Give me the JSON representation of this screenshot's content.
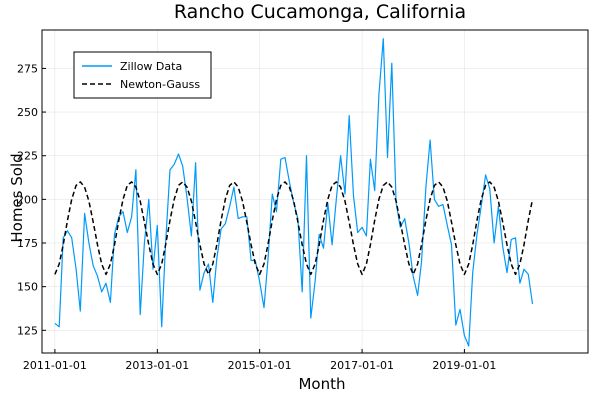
{
  "chart_data": {
    "type": "line",
    "title": "Rancho Cucamonga, California",
    "xlabel": "Month",
    "ylabel": "Homes Sold",
    "x_range": [
      "2010-10-01",
      "2021-06-01"
    ],
    "ylim": [
      112,
      297
    ],
    "x_ticks": [
      "2011-01-01",
      "2013-01-01",
      "2015-01-01",
      "2017-01-01",
      "2019-01-01"
    ],
    "y_ticks": [
      125,
      150,
      175,
      200,
      225,
      250,
      275
    ],
    "grid": true,
    "legend_position": "top-left",
    "colors": {
      "zillow": "#009AFA",
      "newton": "#000000"
    },
    "series": [
      {
        "name": "Zillow Data",
        "style": "solid",
        "x": [
          "2011-01-01",
          "2011-02-01",
          "2011-03-01",
          "2011-04-01",
          "2011-05-01",
          "2011-06-01",
          "2011-07-01",
          "2011-08-01",
          "2011-09-01",
          "2011-10-01",
          "2011-11-01",
          "2011-12-01",
          "2012-01-01",
          "2012-02-01",
          "2012-03-01",
          "2012-04-01",
          "2012-05-01",
          "2012-06-01",
          "2012-07-01",
          "2012-08-01",
          "2012-09-01",
          "2012-10-01",
          "2012-11-01",
          "2012-12-01",
          "2013-01-01",
          "2013-02-01",
          "2013-03-01",
          "2013-04-01",
          "2013-05-01",
          "2013-06-01",
          "2013-07-01",
          "2013-08-01",
          "2013-09-01",
          "2013-10-01",
          "2013-11-01",
          "2013-12-01",
          "2014-01-01",
          "2014-02-01",
          "2014-03-01",
          "2014-04-01",
          "2014-05-01",
          "2014-06-01",
          "2014-07-01",
          "2014-08-01",
          "2014-09-01",
          "2014-10-01",
          "2014-11-01",
          "2014-12-01",
          "2015-01-01",
          "2015-02-01",
          "2015-03-01",
          "2015-04-01",
          "2015-05-01",
          "2015-06-01",
          "2015-07-01",
          "2015-08-01",
          "2015-09-01",
          "2015-10-01",
          "2015-11-01",
          "2015-12-01",
          "2016-01-01",
          "2016-02-01",
          "2016-03-01",
          "2016-04-01",
          "2016-05-01",
          "2016-06-01",
          "2016-07-01",
          "2016-08-01",
          "2016-09-01",
          "2016-10-01",
          "2016-11-01",
          "2016-12-01",
          "2017-01-01",
          "2017-02-01",
          "2017-03-01",
          "2017-04-01",
          "2017-05-01",
          "2017-06-01",
          "2017-07-01",
          "2017-08-01",
          "2017-09-01",
          "2017-10-01",
          "2017-11-01",
          "2017-12-01",
          "2018-01-01",
          "2018-02-01",
          "2018-03-01",
          "2018-04-01",
          "2018-05-01",
          "2018-06-01",
          "2018-07-01",
          "2018-08-01",
          "2018-09-01",
          "2018-10-01",
          "2018-11-01",
          "2018-12-01",
          "2019-01-01",
          "2019-02-01",
          "2019-03-01",
          "2019-04-01",
          "2019-05-01",
          "2019-06-01",
          "2019-07-01",
          "2019-08-01",
          "2019-09-01",
          "2019-10-01",
          "2019-11-01",
          "2019-12-01",
          "2020-01-01",
          "2020-02-01",
          "2020-03-01",
          "2020-04-01",
          "2020-05-01"
        ],
        "y": [
          129,
          127,
          178,
          182,
          178,
          160,
          136,
          192,
          175,
          162,
          156,
          147,
          152,
          141,
          180,
          190,
          193,
          181,
          190,
          217,
          134,
          175,
          200,
          160,
          185,
          127,
          175,
          217,
          220,
          226,
          219,
          201,
          179,
          221,
          148,
          158,
          163,
          141,
          166,
          183,
          186,
          196,
          207,
          189,
          190,
          190,
          165,
          165,
          153,
          138,
          165,
          203,
          193,
          223,
          224,
          210,
          198,
          189,
          147,
          225,
          132,
          153,
          180,
          172,
          198,
          174,
          200,
          225,
          203,
          248,
          202,
          181,
          184,
          179,
          223,
          205,
          260,
          292,
          224,
          278,
          198,
          184,
          189,
          175,
          156,
          145,
          164,
          207,
          234,
          200,
          196,
          197,
          185,
          174,
          128,
          137,
          122,
          116,
          158,
          180,
          196,
          214,
          206,
          175,
          196,
          173,
          158,
          177,
          178,
          152,
          160,
          157,
          140
        ],
        "stroke_width": 1.2
      },
      {
        "name": "Newton-Gauss",
        "style": "dashed",
        "x": [
          "2011-01-01",
          "2011-02-01",
          "2011-03-01",
          "2011-04-01",
          "2011-05-01",
          "2011-06-01",
          "2011-07-01",
          "2011-08-01",
          "2011-09-01",
          "2011-10-01",
          "2011-11-01",
          "2011-12-01",
          "2012-01-01",
          "2012-02-01",
          "2012-03-01",
          "2012-04-01",
          "2012-05-01",
          "2012-06-01",
          "2012-07-01",
          "2012-08-01",
          "2012-09-01",
          "2012-10-01",
          "2012-11-01",
          "2012-12-01",
          "2013-01-01",
          "2013-02-01",
          "2013-03-01",
          "2013-04-01",
          "2013-05-01",
          "2013-06-01",
          "2013-07-01",
          "2013-08-01",
          "2013-09-01",
          "2013-10-01",
          "2013-11-01",
          "2013-12-01",
          "2014-01-01",
          "2014-02-01",
          "2014-03-01",
          "2014-04-01",
          "2014-05-01",
          "2014-06-01",
          "2014-07-01",
          "2014-08-01",
          "2014-09-01",
          "2014-10-01",
          "2014-11-01",
          "2014-12-01",
          "2015-01-01",
          "2015-02-01",
          "2015-03-01",
          "2015-04-01",
          "2015-05-01",
          "2015-06-01",
          "2015-07-01",
          "2015-08-01",
          "2015-09-01",
          "2015-10-01",
          "2015-11-01",
          "2015-12-01",
          "2016-01-01",
          "2016-02-01",
          "2016-03-01",
          "2016-04-01",
          "2016-05-01",
          "2016-06-01",
          "2016-07-01",
          "2016-08-01",
          "2016-09-01",
          "2016-10-01",
          "2016-11-01",
          "2016-12-01",
          "2017-01-01",
          "2017-02-01",
          "2017-03-01",
          "2017-04-01",
          "2017-05-01",
          "2017-06-01",
          "2017-07-01",
          "2017-08-01",
          "2017-09-01",
          "2017-10-01",
          "2017-11-01",
          "2017-12-01",
          "2018-01-01",
          "2018-02-01",
          "2018-03-01",
          "2018-04-01",
          "2018-05-01",
          "2018-06-01",
          "2018-07-01",
          "2018-08-01",
          "2018-09-01",
          "2018-10-01",
          "2018-11-01",
          "2018-12-01",
          "2019-01-01",
          "2019-02-01",
          "2019-03-01",
          "2019-04-01",
          "2019-05-01",
          "2019-06-01",
          "2019-07-01",
          "2019-08-01",
          "2019-09-01",
          "2019-10-01",
          "2019-11-01",
          "2019-12-01",
          "2020-01-01",
          "2020-02-01",
          "2020-03-01",
          "2020-04-01",
          "2020-05-01"
        ],
        "y": [
          157,
          163,
          174,
          188,
          200,
          208,
          210,
          207,
          199,
          187,
          174,
          163,
          157,
          163,
          174,
          188,
          200,
          208,
          210,
          207,
          199,
          187,
          174,
          163,
          157,
          163,
          174,
          188,
          200,
          208,
          210,
          207,
          199,
          187,
          174,
          163,
          157,
          163,
          174,
          188,
          200,
          208,
          210,
          207,
          199,
          187,
          174,
          163,
          157,
          163,
          174,
          188,
          200,
          208,
          210,
          207,
          199,
          187,
          174,
          163,
          157,
          163,
          174,
          188,
          200,
          208,
          210,
          207,
          199,
          187,
          174,
          163,
          157,
          163,
          174,
          188,
          200,
          208,
          210,
          207,
          199,
          187,
          174,
          163,
          157,
          163,
          174,
          188,
          200,
          208,
          210,
          207,
          199,
          187,
          174,
          163,
          157,
          163,
          174,
          188,
          200,
          208,
          210,
          207,
          199,
          187,
          174,
          163,
          157,
          163,
          174,
          188,
          200
        ],
        "stroke_width": 1.5
      }
    ]
  }
}
